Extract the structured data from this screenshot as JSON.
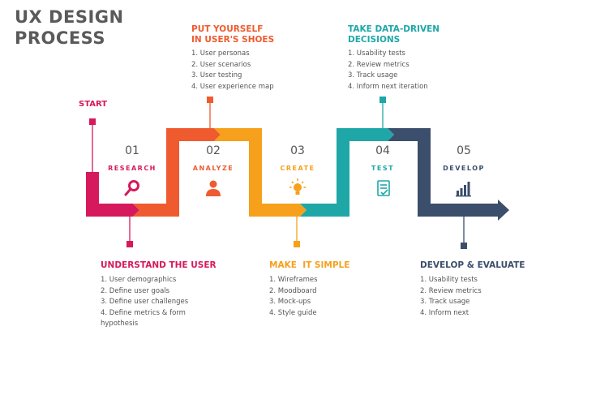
{
  "title": {
    "line1": "UX DESIGN",
    "line2": "PROCESS"
  },
  "start_label": "START",
  "colors": {
    "research": "#d6195c",
    "analyze": "#ef5b2f",
    "create": "#f6a01c",
    "test": "#1fa7a8",
    "develop": "#3b4e6b"
  },
  "steps": [
    {
      "number": "01",
      "label": "RESEARCH",
      "icon": "search-icon"
    },
    {
      "number": "02",
      "label": "ANALYZE",
      "icon": "user-icon"
    },
    {
      "number": "03",
      "label": "CREATE",
      "icon": "lightbulb-icon"
    },
    {
      "number": "04",
      "label": "TEST",
      "icon": "clipboard-check-icon"
    },
    {
      "number": "05",
      "label": "DEVELOP",
      "icon": "bar-chart-icon"
    }
  ],
  "blocks": {
    "understand": {
      "title": "UNDERSTAND THE USER",
      "items": [
        "1. User demographics",
        "2. Define user goals",
        "3. Define user challenges",
        "4. Define metrics & form",
        "hypothesis"
      ]
    },
    "put_yourself": {
      "title_line1": "PUT YOURSELF",
      "title_line2": "IN USER'S SHOES",
      "items": [
        "1. User personas",
        "2. User scenarios",
        "3. User testing",
        "4. User experience map"
      ]
    },
    "make_simple": {
      "title": "MAKE  IT SIMPLE",
      "items": [
        "1. Wireframes",
        "2. Moodboard",
        "3. Mock-ups",
        "4. Style guide"
      ]
    },
    "data_driven": {
      "title_line1": "TAKE DATA-DRIVEN",
      "title_line2": "DECISIONS",
      "items": [
        "1. Usability tests",
        "2. Review metrics",
        "3. Track usage",
        "4. Inform next iteration"
      ]
    },
    "develop_evaluate": {
      "title": "DEVELOP & EVALUATE",
      "items": [
        "1. Usability tests",
        "2. Review metrics",
        "3. Track usage",
        "4. Inform next"
      ]
    }
  }
}
